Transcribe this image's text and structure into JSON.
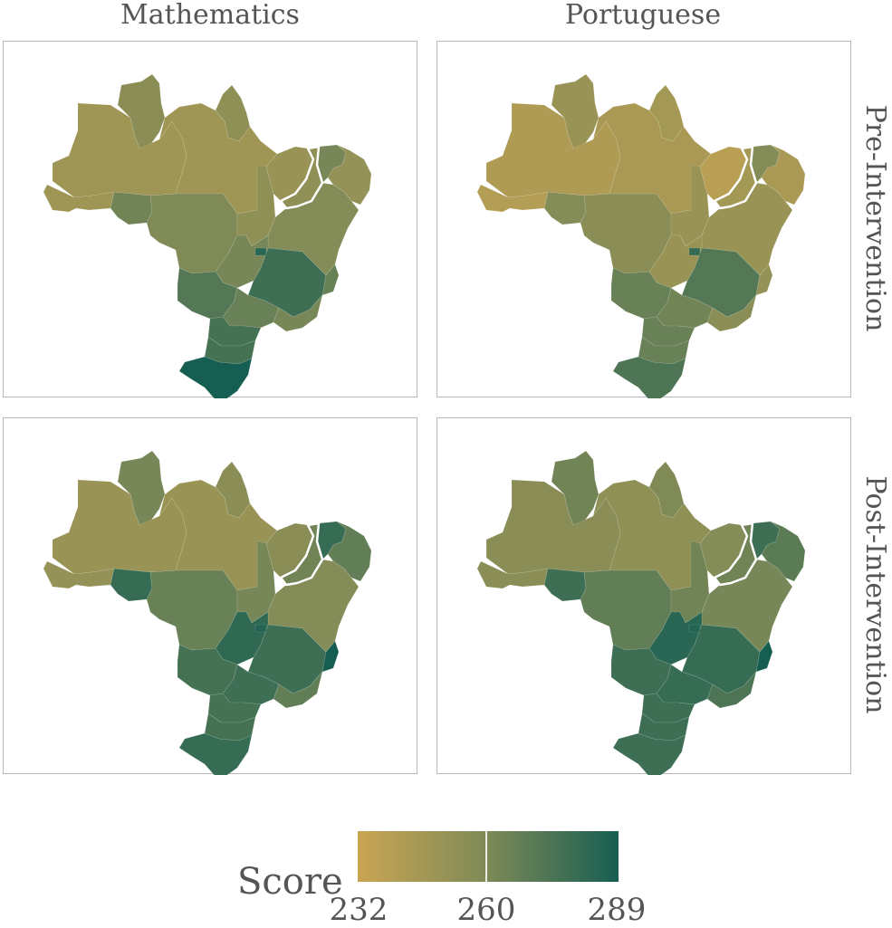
{
  "columns": [
    "Mathematics",
    "Portuguese"
  ],
  "rows": [
    "Pre-Intervention",
    "Post-Intervention"
  ],
  "legend": {
    "title": "Score",
    "min": 232,
    "max": 289,
    "ticks": [
      232,
      260,
      289
    ],
    "tick_labels": [
      "232",
      "260",
      "289"
    ],
    "color_low": "#c9a553",
    "color_mid": "#7f8a57",
    "color_high": "#175e52"
  },
  "highlight_outline_color": "#ffffff",
  "regions": [
    "Roraima",
    "Amapa",
    "Amazonas",
    "Para",
    "Acre",
    "Rondonia",
    "Mato Grosso",
    "Tocantins",
    "Maranhao",
    "Piaui",
    "Ceara",
    "Northeast Coast",
    "Bahia",
    "Goias",
    "Distrito Federal",
    "Minas Gerais",
    "Espirito Santo",
    "Mato Grosso do Sul",
    "Sao Paulo",
    "Rio de Janeiro",
    "Parana",
    "Santa Catarina",
    "Rio Grande do Sul"
  ],
  "panels": [
    {
      "subject": "Mathematics",
      "period": "Pre-Intervention",
      "scores": {
        "Roraima": 256,
        "Amapa": 254,
        "Amazonas": 248,
        "Para": 248,
        "Acre": 248,
        "Rondonia": 264,
        "Mato Grosso": 260,
        "Tocantins": 254,
        "Maranhao": 250,
        "Piaui": 254,
        "Ceara": 262,
        "Northeast Coast": 252,
        "Bahia": 258,
        "Goias": 262,
        "Distrito Federal": 284,
        "Minas Gerais": 278,
        "Espirito Santo": 266,
        "Mato Grosso do Sul": 272,
        "Sao Paulo": 266,
        "Rio de Janeiro": 262,
        "Parana": 276,
        "Santa Catarina": 276,
        "Rio Grande do Sul": 289
      }
    },
    {
      "subject": "Portuguese",
      "period": "Pre-Intervention",
      "scores": {
        "Roraima": 250,
        "Amapa": 246,
        "Amazonas": 242,
        "Para": 244,
        "Acre": 240,
        "Rondonia": 258,
        "Mato Grosso": 256,
        "Tocantins": 250,
        "Maranhao": 238,
        "Piaui": 246,
        "Ceara": 258,
        "Northeast Coast": 244,
        "Bahia": 250,
        "Goias": 250,
        "Distrito Federal": 280,
        "Minas Gerais": 272,
        "Espirito Santo": 252,
        "Mato Grosso do Sul": 266,
        "Sao Paulo": 264,
        "Rio de Janeiro": 256,
        "Parana": 266,
        "Santa Catarina": 266,
        "Rio Grande do Sul": 274
      }
    },
    {
      "subject": "Mathematics",
      "period": "Post-Intervention",
      "scores": {
        "Roraima": 262,
        "Amapa": 256,
        "Amazonas": 250,
        "Para": 250,
        "Acre": 252,
        "Rondonia": 280,
        "Mato Grosso": 266,
        "Tocantins": 262,
        "Maranhao": 256,
        "Piaui": 264,
        "Ceara": 280,
        "Northeast Coast": 268,
        "Bahia": 258,
        "Goias": 282,
        "Distrito Federal": 286,
        "Minas Gerais": 278,
        "Espirito Santo": 289,
        "Mato Grosso do Sul": 276,
        "Sao Paulo": 278,
        "Rio de Janeiro": 268,
        "Parana": 276,
        "Santa Catarina": 276,
        "Rio Grande do Sul": 280
      }
    },
    {
      "subject": "Portuguese",
      "period": "Post-Intervention",
      "scores": {
        "Roraima": 264,
        "Amapa": 260,
        "Amazonas": 256,
        "Para": 254,
        "Acre": 256,
        "Rondonia": 278,
        "Mato Grosso": 268,
        "Tocantins": 264,
        "Maranhao": 258,
        "Piaui": 264,
        "Ceara": 278,
        "Northeast Coast": 270,
        "Bahia": 262,
        "Goias": 284,
        "Distrito Federal": 286,
        "Minas Gerais": 280,
        "Espirito Santo": 289,
        "Mato Grosso do Sul": 278,
        "Sao Paulo": 280,
        "Rio de Janeiro": 274,
        "Parana": 278,
        "Santa Catarina": 278,
        "Rio Grande do Sul": 278
      }
    }
  ]
}
